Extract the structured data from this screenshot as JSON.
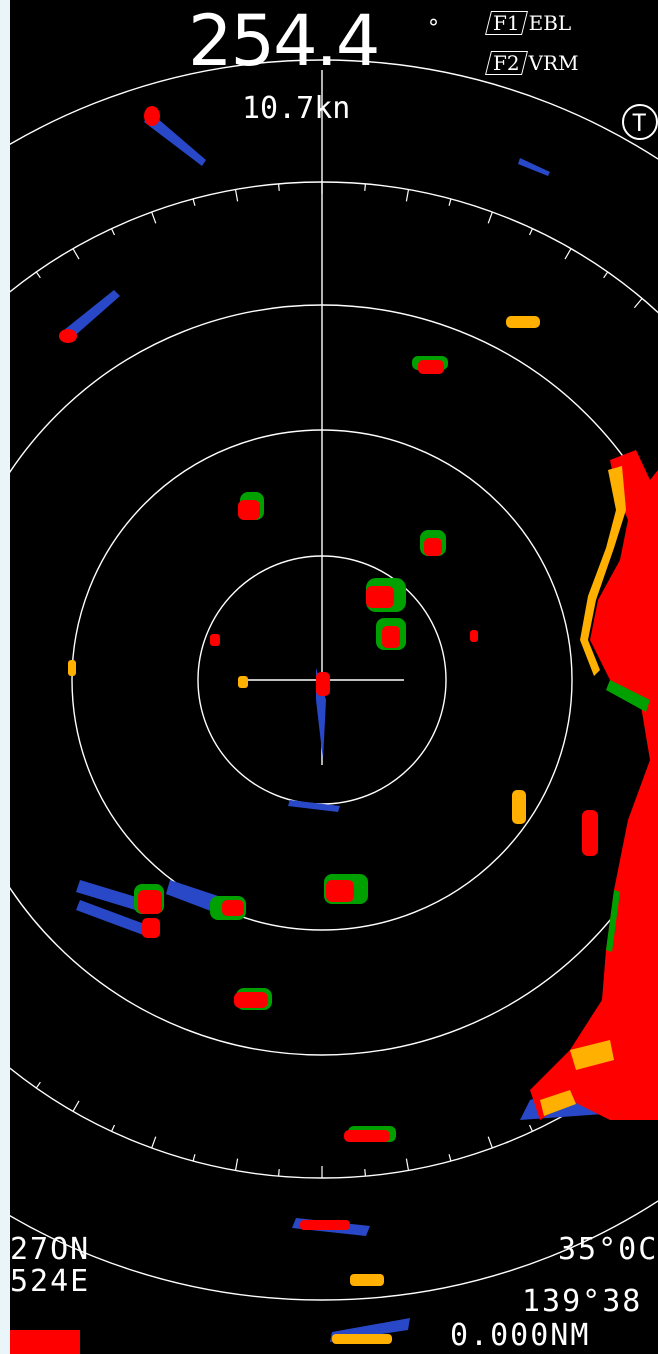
{
  "heading": {
    "value": "254.4",
    "unit": "°"
  },
  "speed": "10.7kn",
  "function_keys": [
    {
      "key": "F1",
      "label": "EBL"
    },
    {
      "key": "F2",
      "label": "VRM"
    }
  ],
  "top_right_icon_glyph": "T",
  "own_position": {
    "lat_left": "27ON",
    "lon_left": "524E",
    "lat_right": "35°0C",
    "lon_right": "139°38",
    "range_readout": "0.000NM"
  },
  "colors": {
    "background": "#000000",
    "rings": "#ffffff",
    "echo_strong": "#ff0000",
    "echo_mid": "#ffb000",
    "echo_green": "#00a000",
    "echo_trail": "#2848c8"
  }
}
